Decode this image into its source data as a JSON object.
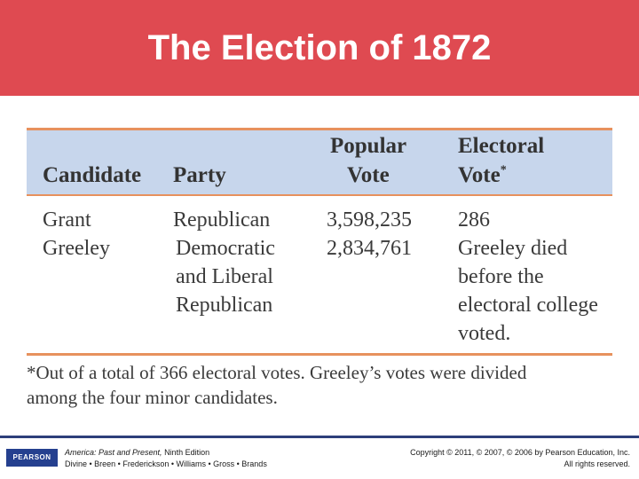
{
  "slide": {
    "title": "The Election of 1872"
  },
  "table": {
    "headers": {
      "candidate": "Candidate",
      "party": "Party",
      "popular_vote_line1": "Popular",
      "popular_vote_line2": "Vote",
      "electoral_vote_line1": "Electoral",
      "electoral_vote_line2": "Vote",
      "electoral_vote_marker": "*"
    },
    "rows": [
      {
        "candidate": "Grant",
        "party": [
          "Republican"
        ],
        "popular_vote": "3,598,235",
        "electoral_vote": [
          "286"
        ]
      },
      {
        "candidate": "Greeley",
        "party": [
          "Democratic",
          "and Liberal",
          "Republican"
        ],
        "popular_vote": "2,834,761",
        "electoral_vote": [
          "Greeley died",
          "before the",
          "electoral college",
          "voted."
        ]
      }
    ],
    "footnote_line1": "*Out of a total of 366 electoral votes. Greeley’s votes were divided",
    "footnote_line2": "among the four minor candidates."
  },
  "footer": {
    "logo_text": "PEARSON",
    "book_title": "America: Past and Present,",
    "book_edition": " Ninth Edition",
    "authors": "Divine • Breen • Frederickson • Williams • Gross • Brands",
    "copyright": "Copyright © 2011, © 2007, © 2006 by Pearson Education, Inc.",
    "rights": "All rights reserved."
  },
  "colors": {
    "title_bar": "#df4a51",
    "header_band": "#c7d6ec",
    "rule": "#e7915d",
    "footer_rule": "#2d3f7a",
    "logo_bg": "#25408f"
  }
}
